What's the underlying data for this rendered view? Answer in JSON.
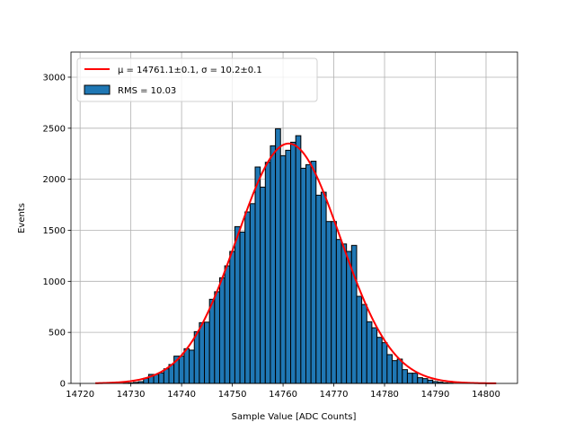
{
  "chart_data": {
    "type": "bar",
    "title": "",
    "xlabel": "Sample Value [ADC Counts]",
    "ylabel": "Events",
    "xlim": [
      14718.2,
      14806.2
    ],
    "ylim": [
      0,
      3246
    ],
    "grid": true,
    "xticks": [
      14720,
      14730,
      14740,
      14750,
      14760,
      14770,
      14780,
      14790,
      14800
    ],
    "yticks": [
      0,
      500,
      1000,
      1500,
      2000,
      2500,
      3000
    ],
    "bin_width": 1.0,
    "bin_left_edges": [
      14728.5,
      14729.5,
      14730.5,
      14731.5,
      14732.5,
      14733.5,
      14734.5,
      14735.5,
      14736.5,
      14737.5,
      14738.5,
      14739.5,
      14740.5,
      14741.5,
      14742.5,
      14743.5,
      14744.5,
      14745.5,
      14746.5,
      14747.5,
      14748.5,
      14749.5,
      14750.5,
      14751.5,
      14752.5,
      14753.5,
      14754.5,
      14755.5,
      14756.5,
      14757.5,
      14758.5,
      14759.5,
      14760.5,
      14761.5,
      14762.5,
      14763.5,
      14764.5,
      14765.5,
      14766.5,
      14767.5,
      14768.5,
      14769.5,
      14770.5,
      14771.5,
      14772.5,
      14773.5,
      14774.5,
      14775.5,
      14776.5,
      14777.5,
      14778.5,
      14779.5,
      14780.5,
      14781.5,
      14782.5,
      14783.5,
      14784.5,
      14785.5,
      14786.5,
      14787.5,
      14788.5,
      14789.5,
      14790.5,
      14791.5,
      14792.5
    ],
    "values": [
      3,
      5,
      10,
      17,
      50,
      88,
      88,
      103,
      143,
      185,
      267,
      267,
      340,
      326,
      507,
      595,
      600,
      824,
      898,
      1035,
      1152,
      1293,
      1536,
      1483,
      1680,
      1761,
      2120,
      1923,
      2166,
      2328,
      2495,
      2231,
      2284,
      2363,
      2427,
      2108,
      2143,
      2177,
      1844,
      1873,
      1586,
      1586,
      1410,
      1366,
      1293,
      1352,
      853,
      773,
      604,
      545,
      451,
      399,
      282,
      223,
      238,
      135,
      100,
      100,
      56,
      47,
      32,
      18,
      12,
      6,
      3
    ],
    "fit": {
      "mu": 14761.1,
      "sigma": 10.2,
      "amplitude": 2350,
      "x_range": [
        14723,
        14802
      ]
    },
    "colors": {
      "bars": "#1f77b4",
      "bar_edge": "#000000",
      "fit": "#ff0000",
      "grid": "#b0b0b0"
    },
    "legend": {
      "placement": "top-left",
      "entries": [
        {
          "label": "μ = 14761.1±0.1, σ = 10.2±0.1",
          "kind": "line"
        },
        {
          "label": "RMS = 10.03",
          "kind": "patch"
        }
      ]
    }
  }
}
